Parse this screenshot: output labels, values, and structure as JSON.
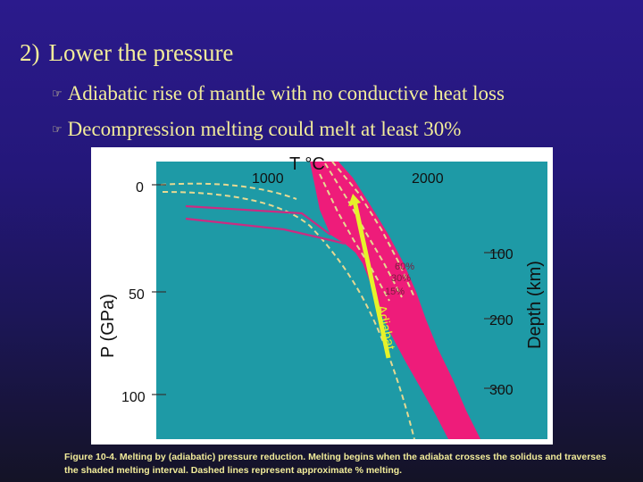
{
  "slide": {
    "title_number": "2)",
    "title_text": "Lower the pressure",
    "bullets": [
      {
        "icon": "pointing-hand-icon",
        "text": "Adiabatic rise of mantle with no conductive heat loss"
      },
      {
        "icon": "pointing-hand-icon",
        "text": "Decompression melting could melt at least 30%"
      }
    ],
    "caption_label": "Figure 10-4.",
    "caption_text": "Melting by (adiabatic) pressure reduction. Melting begins when the adiabat crosses the solidus and traverses the shaded melting interval. Dashed lines represent approximate % melting."
  },
  "figure": {
    "temperature_axis_title": "T °C",
    "temperature_ticks": [
      "1000",
      "2000"
    ],
    "pressure_axis_title": "P (GPa)",
    "pressure_ticks": [
      "0",
      "50",
      "100"
    ],
    "depth_axis_title": "Depth (km)",
    "depth_ticks": [
      "100",
      "200",
      "300"
    ],
    "melt_labels": [
      "60%",
      "30%",
      "15%"
    ],
    "adiabat_label": "Adiabat",
    "colors": {
      "mantle": "#1e9aa6",
      "melting_interval": "#ee1c7a",
      "adiabat": "#e6f22a",
      "dashed": "#e6d992"
    }
  }
}
